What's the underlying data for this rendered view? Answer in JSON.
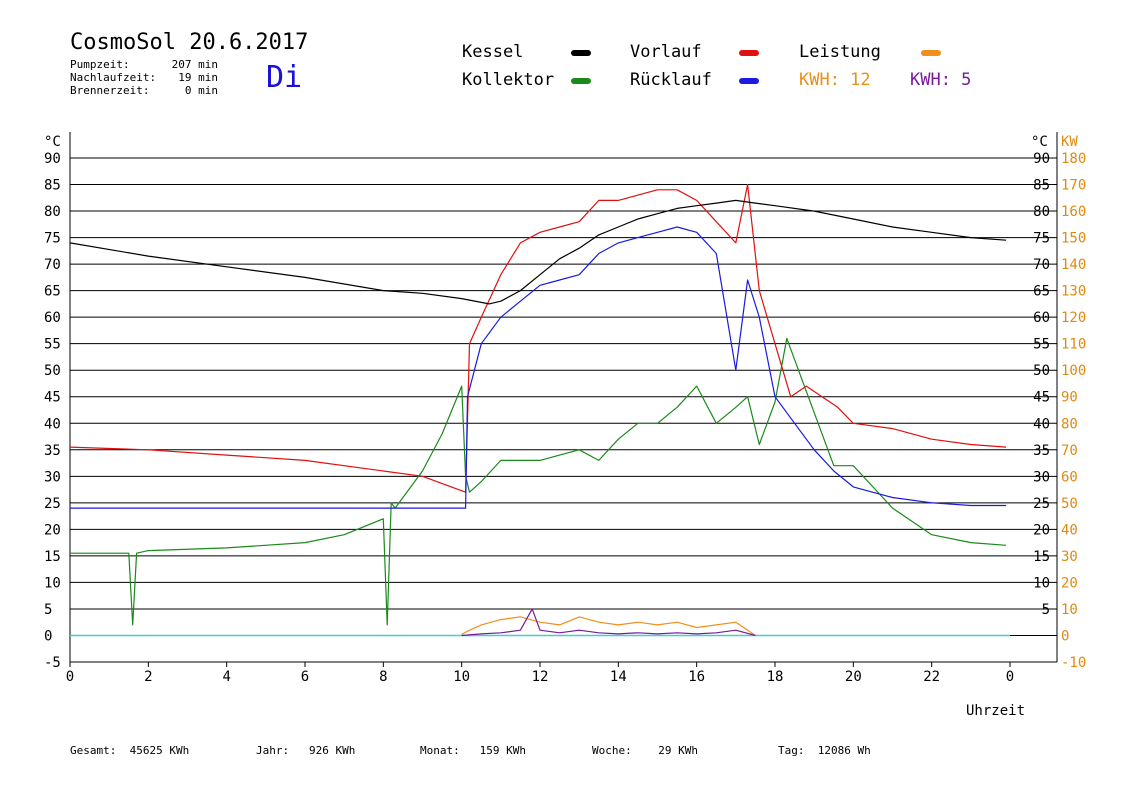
{
  "header": {
    "title": "CosmoSol 20.6.2017",
    "day": "Di",
    "stats": [
      {
        "label": "Pumpzeit:",
        "value": "207 min"
      },
      {
        "label": "Nachlaufzeit:",
        "value": "19 min"
      },
      {
        "label": "Brennerzeit:",
        "value": "0 min"
      }
    ]
  },
  "legend": {
    "kessel": {
      "label": "Kessel",
      "color": "#000000"
    },
    "vorlauf": {
      "label": "Vorlauf",
      "color": "#e01010"
    },
    "leistung": {
      "label": "Leistung",
      "color": "#f0901a"
    },
    "kollektor": {
      "label": "Kollektor",
      "color": "#1a8a1a"
    },
    "ruecklauf": {
      "label": "Rücklauf",
      "color": "#1a1ae0"
    },
    "kwh1": {
      "label": "KWH: 12",
      "color": "#e8901a"
    },
    "kwh2": {
      "label": "KWH: 5",
      "color": "#7a1a9a"
    }
  },
  "footer": {
    "gesamt": "Gesamt:  45625 KWh",
    "jahr": "Jahr:   926 KWh",
    "monat": "Monat:   159 KWh",
    "woche": "Woche:    29 KWh",
    "tag": "Tag:  12086 Wh"
  },
  "chart_data": {
    "type": "line",
    "xlabel": "Uhrzeit",
    "ylabel_left": "°C",
    "ylabel_right_c": "°C",
    "ylabel_right_kw": "KW",
    "xlim": [
      0,
      24
    ],
    "ylim": [
      -5,
      95
    ],
    "x_ticks": [
      "0",
      "2",
      "4",
      "6",
      "8",
      "10",
      "12",
      "14",
      "16",
      "18",
      "20",
      "22",
      "0"
    ],
    "y_ticks_left": [
      "-5",
      "0",
      "5",
      "10",
      "15",
      "20",
      "25",
      "30",
      "35",
      "40",
      "45",
      "50",
      "55",
      "60",
      "65",
      "70",
      "75",
      "80",
      "85",
      "90"
    ],
    "y_ticks_right_c": [
      "5",
      "10",
      "15",
      "20",
      "25",
      "30",
      "35",
      "40",
      "45",
      "50",
      "55",
      "60",
      "65",
      "70",
      "75",
      "80",
      "85",
      "90"
    ],
    "y_ticks_right_kw": [
      "-10",
      "0",
      "10",
      "20",
      "30",
      "40",
      "50",
      "60",
      "70",
      "80",
      "90",
      "100",
      "110",
      "120",
      "130",
      "140",
      "150",
      "160",
      "170",
      "180"
    ],
    "baseline_color": "#40d0d0",
    "series": [
      {
        "name": "Kessel",
        "color": "#000000",
        "x": [
          0,
          2,
          4,
          6,
          8,
          9,
          10,
          10.7,
          11,
          11.5,
          12,
          12.5,
          13,
          13.5,
          14,
          14.5,
          15,
          15.5,
          16,
          16.5,
          17,
          17.5,
          18,
          19,
          20,
          21,
          22,
          23,
          23.9
        ],
        "y": [
          74,
          71.5,
          69.5,
          67.5,
          65,
          64.5,
          63.5,
          62.5,
          63,
          65,
          68,
          71,
          73,
          75.5,
          77,
          78.5,
          79.5,
          80.5,
          81,
          81.5,
          82,
          81.5,
          81,
          80,
          78.5,
          77,
          76,
          75,
          74.5
        ]
      },
      {
        "name": "Vorlauf",
        "color": "#e01010",
        "x": [
          0,
          2,
          4,
          6,
          8,
          9,
          10.1,
          10.2,
          10.5,
          11,
          11.5,
          12,
          12.5,
          13,
          13.5,
          14,
          14.5,
          15,
          15.5,
          16,
          16.5,
          17,
          17.3,
          17.6,
          18,
          18.4,
          18.8,
          19.2,
          19.6,
          20,
          21,
          22,
          23,
          23.9
        ],
        "y": [
          35.5,
          35,
          34,
          33,
          31,
          30,
          27,
          55,
          60,
          68,
          74,
          76,
          77,
          78,
          82,
          82,
          83,
          84,
          84,
          82,
          78,
          74,
          85,
          65,
          55,
          45,
          47,
          45,
          43,
          40,
          39,
          37,
          36,
          35.5
        ]
      },
      {
        "name": "Rücklauf",
        "color": "#1a1ae0",
        "x": [
          0,
          2,
          4,
          6,
          8,
          9,
          10.1,
          10.15,
          10.5,
          11,
          11.5,
          12,
          12.5,
          13,
          13.5,
          14,
          14.5,
          15,
          15.5,
          16,
          16.5,
          17,
          17.3,
          17.6,
          18,
          18.5,
          19,
          19.5,
          20,
          21,
          22,
          23,
          23.9
        ],
        "y": [
          24,
          24,
          24,
          24,
          24,
          24,
          24,
          45,
          55,
          60,
          63,
          66,
          67,
          68,
          72,
          74,
          75,
          76,
          77,
          76,
          72,
          50,
          67,
          60,
          45,
          40,
          35,
          31,
          28,
          26,
          25,
          24.5,
          24.5
        ]
      },
      {
        "name": "Kollektor",
        "color": "#1a8a1a",
        "x": [
          0,
          1.5,
          1.6,
          1.7,
          2,
          4,
          6,
          7,
          8,
          8.1,
          8.2,
          8.3,
          9,
          9.5,
          10,
          10.1,
          10.2,
          10.5,
          11,
          11.5,
          12,
          12.5,
          13,
          13.5,
          14,
          14.5,
          15,
          15.5,
          16,
          16.5,
          17,
          17.3,
          17.6,
          18,
          18.3,
          18.6,
          19,
          19.5,
          20,
          20.5,
          21,
          22,
          23,
          23.9
        ],
        "y": [
          15.5,
          15.5,
          2,
          15.5,
          16,
          16.5,
          17.5,
          19,
          22,
          2,
          25,
          24,
          31,
          38,
          47,
          30,
          27,
          29,
          33,
          33,
          33,
          34,
          35,
          33,
          37,
          40,
          40,
          43,
          47,
          40,
          43,
          45,
          36,
          44,
          56,
          50,
          42,
          32,
          32,
          28,
          24,
          19,
          17.5,
          17
        ]
      },
      {
        "name": "Leistung",
        "color": "#f0901a",
        "x": [
          10,
          10.2,
          10.5,
          11,
          11.5,
          12,
          12.5,
          13,
          13.5,
          14,
          14.5,
          15,
          15.5,
          16,
          16.5,
          17,
          17.3,
          17.5
        ],
        "y": [
          0.2,
          1,
          2,
          3,
          3.5,
          2.5,
          2,
          3.5,
          2.5,
          2,
          2.5,
          2,
          2.5,
          1.5,
          2,
          2.5,
          1,
          0
        ]
      },
      {
        "name": "KWH",
        "color": "#7a1a9a",
        "x": [
          10,
          10.5,
          11,
          11.5,
          11.8,
          12,
          12.5,
          13,
          13.5,
          14,
          14.5,
          15,
          15.5,
          16,
          16.5,
          17,
          17.5
        ],
        "y": [
          0,
          0.3,
          0.5,
          1,
          5,
          1,
          0.5,
          1,
          0.5,
          0.3,
          0.5,
          0.3,
          0.5,
          0.3,
          0.5,
          1,
          0
        ]
      }
    ]
  }
}
